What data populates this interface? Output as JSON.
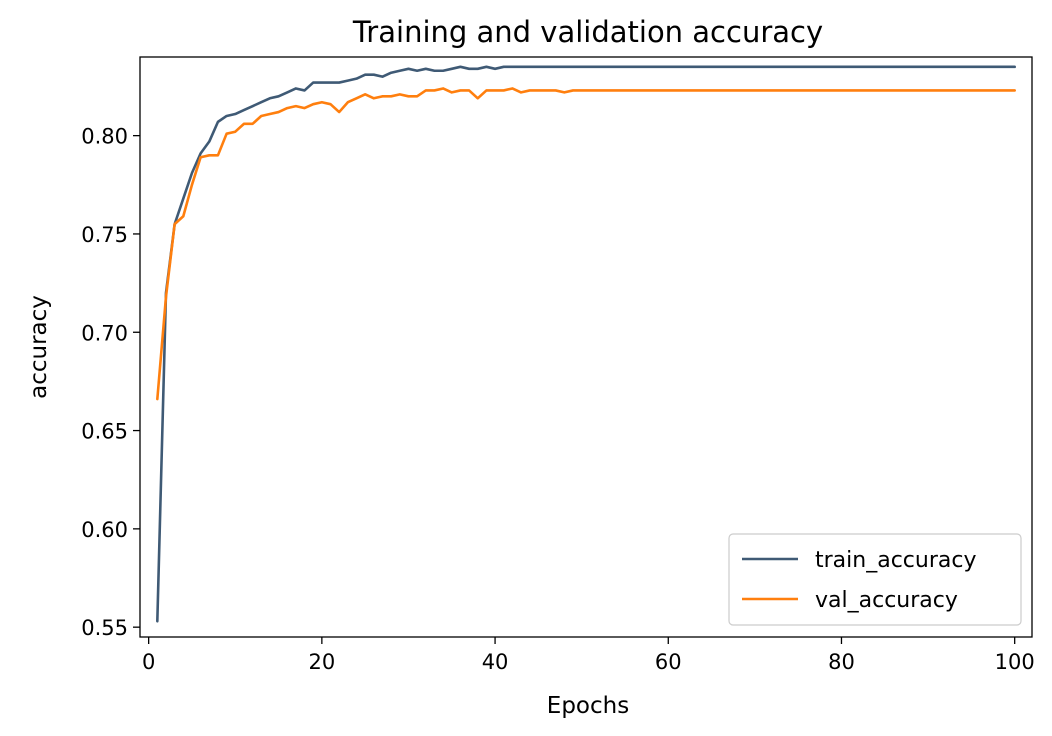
{
  "chart_data": {
    "type": "line",
    "title": "Training and validation accuracy",
    "xlabel": "Epochs",
    "ylabel": "accuracy",
    "xlim": [
      -1,
      102
    ],
    "ylim": [
      0.545,
      0.84
    ],
    "xticks": [
      0,
      20,
      40,
      60,
      80,
      100
    ],
    "yticks": [
      0.55,
      0.6,
      0.65,
      0.7,
      0.75,
      0.8
    ],
    "ytick_labels": [
      "0.55",
      "0.60",
      "0.65",
      "0.70",
      "0.75",
      "0.80"
    ],
    "grid": false,
    "legend_position": "lower right",
    "series": [
      {
        "name": "train_accuracy",
        "color": "#3f5a75",
        "x": [
          1,
          2,
          3,
          4,
          5,
          6,
          7,
          8,
          9,
          10,
          11,
          12,
          13,
          14,
          15,
          16,
          17,
          18,
          19,
          20,
          21,
          22,
          23,
          24,
          25,
          26,
          27,
          28,
          29,
          30,
          31,
          32,
          33,
          34,
          35,
          36,
          37,
          38,
          39,
          40,
          41,
          42,
          43,
          44,
          45,
          46,
          47,
          48,
          49,
          50,
          51,
          52,
          53,
          54,
          55,
          56,
          57,
          58,
          59,
          60,
          61,
          62,
          63,
          64,
          65,
          66,
          67,
          68,
          69,
          70,
          71,
          72,
          73,
          74,
          75,
          76,
          77,
          78,
          79,
          80,
          81,
          82,
          83,
          84,
          85,
          86,
          87,
          88,
          89,
          90,
          91,
          92,
          93,
          94,
          95,
          96,
          97,
          98,
          99,
          100
        ],
        "values": [
          0.553,
          0.72,
          0.755,
          0.768,
          0.781,
          0.791,
          0.797,
          0.807,
          0.81,
          0.811,
          0.813,
          0.815,
          0.817,
          0.819,
          0.82,
          0.822,
          0.824,
          0.823,
          0.827,
          0.827,
          0.827,
          0.827,
          0.828,
          0.829,
          0.831,
          0.831,
          0.83,
          0.832,
          0.833,
          0.834,
          0.833,
          0.834,
          0.833,
          0.833,
          0.834,
          0.835,
          0.834,
          0.834,
          0.835,
          0.834,
          0.835,
          0.835,
          0.835,
          0.835,
          0.835,
          0.835,
          0.835,
          0.835,
          0.835,
          0.835,
          0.835,
          0.835,
          0.835,
          0.835,
          0.835,
          0.835,
          0.835,
          0.835,
          0.835,
          0.835,
          0.835,
          0.835,
          0.835,
          0.835,
          0.835,
          0.835,
          0.835,
          0.835,
          0.835,
          0.835,
          0.835,
          0.835,
          0.835,
          0.835,
          0.835,
          0.835,
          0.835,
          0.835,
          0.835,
          0.835,
          0.835,
          0.835,
          0.835,
          0.835,
          0.835,
          0.835,
          0.835,
          0.835,
          0.835,
          0.835,
          0.835,
          0.835,
          0.835,
          0.835,
          0.835,
          0.835,
          0.835,
          0.835,
          0.835,
          0.835
        ]
      },
      {
        "name": "val_accuracy",
        "color": "#ff7f0e",
        "x": [
          1,
          2,
          3,
          4,
          5,
          6,
          7,
          8,
          9,
          10,
          11,
          12,
          13,
          14,
          15,
          16,
          17,
          18,
          19,
          20,
          21,
          22,
          23,
          24,
          25,
          26,
          27,
          28,
          29,
          30,
          31,
          32,
          33,
          34,
          35,
          36,
          37,
          38,
          39,
          40,
          41,
          42,
          43,
          44,
          45,
          46,
          47,
          48,
          49,
          50,
          51,
          52,
          53,
          54,
          55,
          56,
          57,
          58,
          59,
          60,
          61,
          62,
          63,
          64,
          65,
          66,
          67,
          68,
          69,
          70,
          71,
          72,
          73,
          74,
          75,
          76,
          77,
          78,
          79,
          80,
          81,
          82,
          83,
          84,
          85,
          86,
          87,
          88,
          89,
          90,
          91,
          92,
          93,
          94,
          95,
          96,
          97,
          98,
          99,
          100
        ],
        "values": [
          0.666,
          0.718,
          0.755,
          0.759,
          0.775,
          0.789,
          0.79,
          0.79,
          0.801,
          0.802,
          0.806,
          0.806,
          0.81,
          0.811,
          0.812,
          0.814,
          0.815,
          0.814,
          0.816,
          0.817,
          0.816,
          0.812,
          0.817,
          0.819,
          0.821,
          0.819,
          0.82,
          0.82,
          0.821,
          0.82,
          0.82,
          0.823,
          0.823,
          0.824,
          0.822,
          0.823,
          0.823,
          0.819,
          0.823,
          0.823,
          0.823,
          0.824,
          0.822,
          0.823,
          0.823,
          0.823,
          0.823,
          0.822,
          0.823,
          0.823,
          0.823,
          0.823,
          0.823,
          0.823,
          0.823,
          0.823,
          0.823,
          0.823,
          0.823,
          0.823,
          0.823,
          0.823,
          0.823,
          0.823,
          0.823,
          0.823,
          0.823,
          0.823,
          0.823,
          0.823,
          0.823,
          0.823,
          0.823,
          0.823,
          0.823,
          0.823,
          0.823,
          0.823,
          0.823,
          0.823,
          0.823,
          0.823,
          0.823,
          0.823,
          0.823,
          0.823,
          0.823,
          0.823,
          0.823,
          0.823,
          0.823,
          0.823,
          0.823,
          0.823,
          0.823,
          0.823,
          0.823,
          0.823,
          0.823,
          0.823
        ]
      }
    ]
  }
}
